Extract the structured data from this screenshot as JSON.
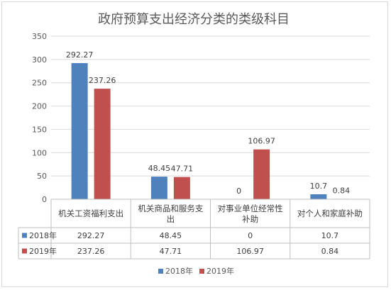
{
  "chart_data": {
    "type": "bar",
    "title": "政府预算支出经济分类的类级科目",
    "categories": [
      [
        "机关工资福利支出"
      ],
      [
        "机关商品和服务支",
        "出"
      ],
      [
        "对事业单位经常性",
        "补助"
      ],
      [
        "对个人和家庭补助"
      ]
    ],
    "series": [
      {
        "name": "2018年",
        "color": "#4f81bd",
        "values": [
          292.27,
          48.45,
          0,
          10.7
        ],
        "labels": [
          "292.27",
          "48.45",
          "0",
          "10.7"
        ]
      },
      {
        "name": "2019年",
        "color": "#c0504d",
        "values": [
          237.26,
          47.71,
          106.97,
          0.84
        ],
        "labels": [
          "237.26",
          "47.71",
          "106.97",
          "0.84"
        ]
      }
    ],
    "ylim": [
      0,
      350
    ],
    "yticks": [
      "0",
      "50",
      "100",
      "150",
      "200",
      "250",
      "300",
      "350"
    ],
    "grid": true,
    "legend": "bottom",
    "data_table": true
  }
}
